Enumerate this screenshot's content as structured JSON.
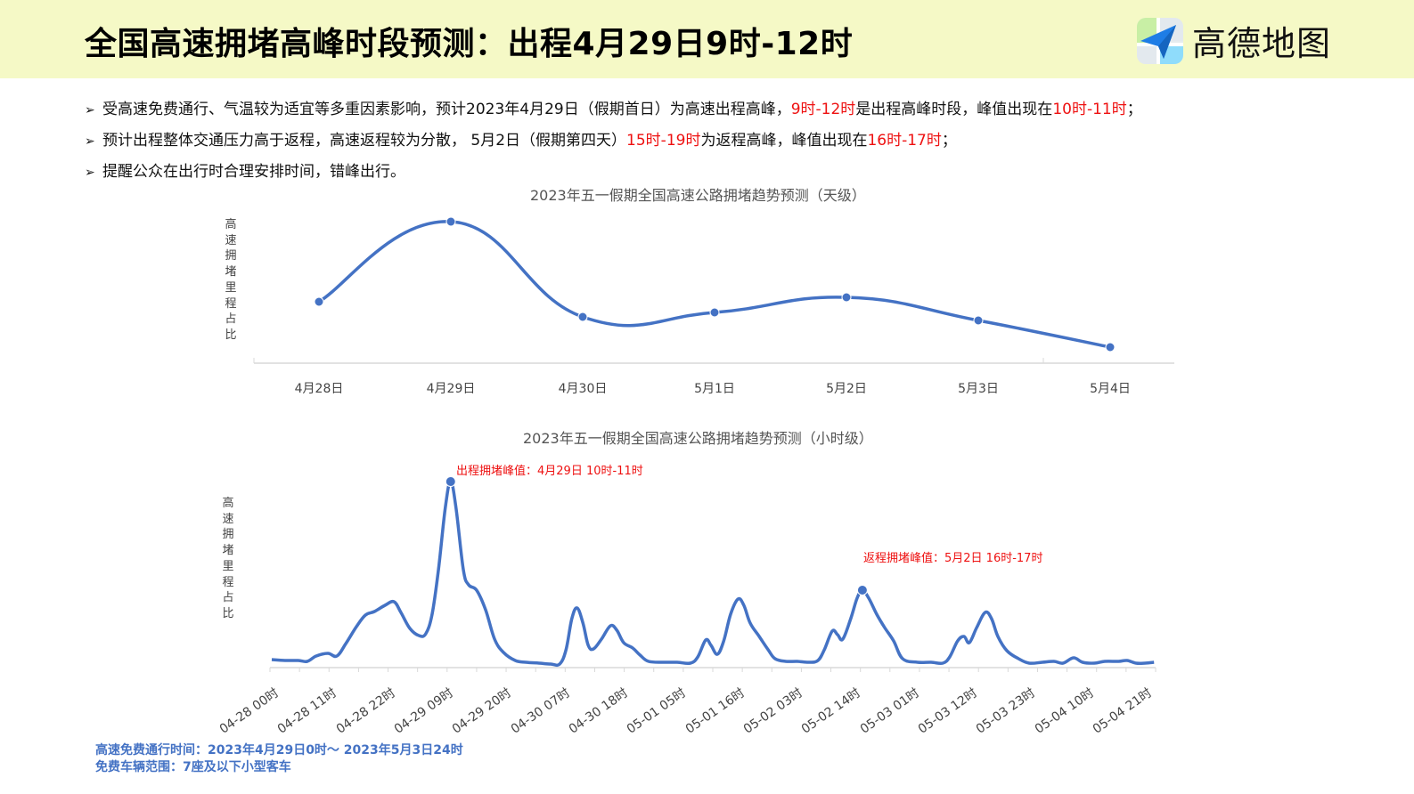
{
  "header": {
    "title": "全国高速拥堵高峰时段预测：出程4月29日9时-12时",
    "logo_text": "高德地图",
    "logo_icon": "paper-plane-map-icon"
  },
  "bullets": [
    {
      "parts": [
        {
          "text": "受高速免费通行、气温较为适宜等多重因素影响，预计2023年4月29日（假期首日）为高速出程高峰，",
          "red": false
        },
        {
          "text": "9时-12时",
          "red": true
        },
        {
          "text": "是出程高峰时段，峰值出现在",
          "red": false
        },
        {
          "text": "10时-11时",
          "red": true
        },
        {
          "text": "；",
          "red": false
        }
      ]
    },
    {
      "parts": [
        {
          "text": "预计出程整体交通压力高于返程，高速返程较为分散， 5月2日（假期第四天）",
          "red": false
        },
        {
          "text": "15时-19时",
          "red": true
        },
        {
          "text": "为返程高峰，峰值出现在",
          "red": false
        },
        {
          "text": "16时-17时",
          "red": true
        },
        {
          "text": "；",
          "red": false
        }
      ]
    },
    {
      "parts": [
        {
          "text": "提醒公众在出行时合理安排时间，错峰出行。",
          "red": false
        }
      ]
    }
  ],
  "bullet_marker": "➢",
  "colors": {
    "line": "#4472c4",
    "highlight": "#ee1111",
    "header_bg": "#f5f9c6",
    "axis": "#d9d9d9"
  },
  "chart_data": [
    {
      "type": "line",
      "title": "2023年五一假期全国高速公路拥堵趋势预测（天级）",
      "xlabel": "",
      "ylabel": "高速拥堵里程占比",
      "categories": [
        "4月28日",
        "4月29日",
        "4月30日",
        "5月1日",
        "5月2日",
        "5月3日",
        "5月4日"
      ],
      "values": [
        69,
        159,
        52,
        57,
        74,
        48,
        18
      ],
      "ylim": [
        0,
        170
      ],
      "grid": false,
      "smooth": true,
      "markers": true
    },
    {
      "type": "line",
      "title": "2023年五一假期全国高速公路拥堵趋势预测（小时级）",
      "xlabel": "",
      "ylabel": "高速拥堵里程占比",
      "tick_labels": [
        "04-28 00时",
        "04-28 11时",
        "04-28 22时",
        "04-29 09时",
        "04-29 20时",
        "04-30 07时",
        "04-30 18时",
        "05-01 05时",
        "05-01 16时",
        "05-02 03时",
        "05-02 14时",
        "05-03 01时",
        "05-03 12时",
        "05-03 23时",
        "05-04 10时",
        "05-04 21时"
      ],
      "tick_step_hours": 11,
      "hours_total": 168,
      "ylim": [
        0,
        220
      ],
      "grid": false,
      "smooth": true,
      "points": [
        [
          0,
          9
        ],
        [
          2.5,
          8
        ],
        [
          5,
          8
        ],
        [
          6.7,
          7
        ],
        [
          8.4,
          13
        ],
        [
          10.6,
          16
        ],
        [
          12.3,
          13
        ],
        [
          14,
          27
        ],
        [
          16,
          46
        ],
        [
          17.7,
          59
        ],
        [
          19.4,
          63
        ],
        [
          21.4,
          70
        ],
        [
          23.1,
          74
        ],
        [
          24.4,
          62
        ],
        [
          26.1,
          44
        ],
        [
          27.8,
          36
        ],
        [
          29.1,
          38
        ],
        [
          30.3,
          60
        ],
        [
          31.5,
          110
        ],
        [
          32.8,
          180
        ],
        [
          33.8,
          209
        ],
        [
          34.8,
          180
        ],
        [
          36.2,
          110
        ],
        [
          37.2,
          93
        ],
        [
          38.7,
          87
        ],
        [
          40.4,
          65
        ],
        [
          42.1,
          32
        ],
        [
          43.8,
          17
        ],
        [
          46,
          8
        ],
        [
          48,
          6
        ],
        [
          50.5,
          5
        ],
        [
          52.7,
          4
        ],
        [
          54.4,
          4
        ],
        [
          55.6,
          20
        ],
        [
          56.7,
          55
        ],
        [
          57.7,
          67
        ],
        [
          58.8,
          50
        ],
        [
          59.8,
          25
        ],
        [
          60.8,
          21
        ],
        [
          62.3,
          32
        ],
        [
          64,
          47
        ],
        [
          65.2,
          42
        ],
        [
          66.5,
          28
        ],
        [
          68.2,
          22
        ],
        [
          69.6,
          14
        ],
        [
          71.2,
          7
        ],
        [
          74.1,
          6
        ],
        [
          76.6,
          6
        ],
        [
          79.1,
          5
        ],
        [
          80.5,
          12
        ],
        [
          82,
          31
        ],
        [
          83,
          25
        ],
        [
          84.2,
          15
        ],
        [
          85.4,
          30
        ],
        [
          86.7,
          60
        ],
        [
          88.1,
          77
        ],
        [
          89.2,
          70
        ],
        [
          90.4,
          50
        ],
        [
          92.1,
          35
        ],
        [
          93.8,
          20
        ],
        [
          95.1,
          10
        ],
        [
          97.1,
          7
        ],
        [
          99.3,
          7
        ],
        [
          101.5,
          6
        ],
        [
          103.2,
          8
        ],
        [
          104.4,
          20
        ],
        [
          105.9,
          41
        ],
        [
          106.9,
          37
        ],
        [
          107.9,
          32
        ],
        [
          109.4,
          55
        ],
        [
          110.6,
          78
        ],
        [
          111.6,
          87
        ],
        [
          112.8,
          78
        ],
        [
          114.3,
          60
        ],
        [
          115.8,
          45
        ],
        [
          117.5,
          30
        ],
        [
          119.2,
          10
        ],
        [
          122,
          6
        ],
        [
          124.6,
          6
        ],
        [
          126.8,
          5
        ],
        [
          128.1,
          12
        ],
        [
          129.6,
          30
        ],
        [
          130.8,
          35
        ],
        [
          131.8,
          28
        ],
        [
          133.2,
          45
        ],
        [
          134.8,
          62
        ],
        [
          136,
          55
        ],
        [
          137.2,
          35
        ],
        [
          138.9,
          19
        ],
        [
          141.1,
          10
        ],
        [
          143.1,
          5
        ],
        [
          145.6,
          6
        ],
        [
          147.8,
          7
        ],
        [
          149.5,
          5
        ],
        [
          151.5,
          11
        ],
        [
          153.2,
          6
        ],
        [
          155.4,
          5
        ],
        [
          157.4,
          7
        ],
        [
          160,
          7
        ],
        [
          161.6,
          8
        ],
        [
          163.3,
          5
        ],
        [
          165,
          5
        ],
        [
          166.7,
          6
        ]
      ],
      "annotations": [
        {
          "text": "出程拥堵峰值：4月29日 10时-11时",
          "hour": 33.8,
          "value": 209
        },
        {
          "text": "返程拥堵峰值：5月2日 16时-17时",
          "hour": 111.6,
          "value": 87
        }
      ]
    }
  ],
  "footer": {
    "line1": "高速免费通行时间：2023年4月29日0时～ 2023年5月3日24时",
    "line2": "免费车辆范围：7座及以下小型客车"
  }
}
